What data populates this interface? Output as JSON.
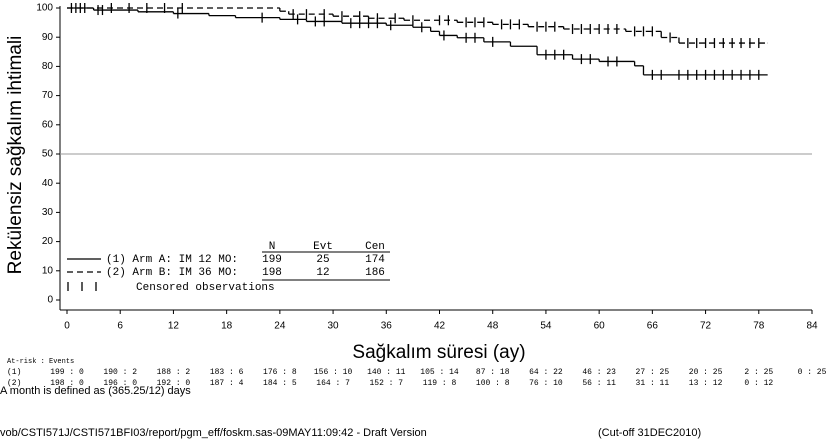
{
  "chart_data": {
    "type": "km",
    "y_label": "Rekülensiz sağkalım ihtimali",
    "x_label": "Sağkalım süresi (ay)",
    "xlim": [
      0,
      84
    ],
    "xticks": [
      0,
      6,
      12,
      18,
      24,
      30,
      36,
      42,
      48,
      54,
      60,
      66,
      72,
      78,
      84
    ],
    "ylim": [
      0,
      100
    ],
    "yticks": [
      0,
      10,
      20,
      30,
      40,
      50,
      60,
      70,
      80,
      90,
      100
    ],
    "reference_line": 50,
    "series": [
      {
        "name": "(1) Arm A: IM 12 MO:",
        "color": "#000000",
        "dash": false,
        "x": [
          0,
          3,
          8,
          12,
          16,
          19,
          24,
          27,
          31,
          36,
          39,
          41,
          42,
          44,
          47,
          50,
          53,
          57,
          60,
          64,
          65,
          79
        ],
        "values": [
          100,
          99.3,
          98.7,
          98.1,
          97.4,
          96.7,
          96.1,
          95.4,
          94.8,
          94.1,
          93.4,
          92,
          90.6,
          89.8,
          88.4,
          86.9,
          84,
          82.5,
          81.7,
          80.2,
          77.1,
          77.1
        ],
        "censored": [
          1,
          2,
          3.5,
          4,
          12.5,
          22,
          26,
          28,
          29,
          32,
          33,
          34,
          35,
          36.5,
          40,
          42.5,
          45,
          46,
          48,
          54,
          55,
          56,
          58,
          59,
          61,
          62,
          66,
          67,
          69,
          70,
          71,
          72,
          73,
          74,
          75,
          76,
          77,
          78
        ]
      },
      {
        "name": "(2) Arm B: IM 36 MO:",
        "color": "#000000",
        "dash": true,
        "x": [
          0,
          24,
          25,
          30,
          34,
          38,
          44,
          48,
          52,
          56,
          63,
          67,
          69,
          79
        ],
        "values": [
          100,
          98.9,
          97.9,
          97.2,
          96.5,
          95.8,
          95.1,
          94.4,
          93.6,
          92.8,
          92,
          89.9,
          88,
          88
        ],
        "censored": [
          0.5,
          1.5,
          5,
          7,
          9,
          11,
          13,
          25.5,
          27,
          29,
          31,
          33,
          35,
          37,
          39,
          42,
          43,
          45,
          46,
          47,
          49,
          50,
          51,
          53,
          54,
          55,
          57,
          58,
          59,
          60,
          61,
          62,
          64,
          65,
          66,
          68,
          70,
          71,
          72,
          73,
          74,
          75,
          76,
          77,
          78
        ]
      }
    ],
    "legend_table": {
      "header": [
        "N",
        "Evt",
        "Cen"
      ],
      "rows": [
        [
          199,
          25,
          174
        ],
        [
          198,
          12,
          186
        ]
      ],
      "censored_label": "Censored observations"
    },
    "at_risk": {
      "title": "At-risk : Events",
      "rows": [
        {
          "label": "(1)",
          "values": [
            "199 : 0",
            "190 : 2",
            "188 : 2",
            "183 : 6",
            "176 : 8",
            "156 : 10",
            "140 : 11",
            "105 : 14",
            "87 : 18",
            "64 : 22",
            "46 : 23",
            "27 : 25",
            "20 : 25",
            "2 : 25",
            "0 : 25"
          ]
        },
        {
          "label": "(2)",
          "values": [
            "198 : 0",
            "196 : 0",
            "192 : 0",
            "187 : 4",
            "184 : 5",
            "164 : 7",
            "152 : 7",
            "119 : 8",
            "100 : 8",
            "76 : 10",
            "56 : 11",
            "31 : 11",
            "13 : 12",
            "0 : 12"
          ]
        }
      ]
    },
    "footnotes": [
      "A month is defined as (365.25/12) days",
      "vob/CSTI571J/CSTI571BFI03/report/pgm_eff/foskm.sas-09MAY11:09:42 - Draft Version",
      "(Cut-off 31DEC2010)"
    ]
  }
}
